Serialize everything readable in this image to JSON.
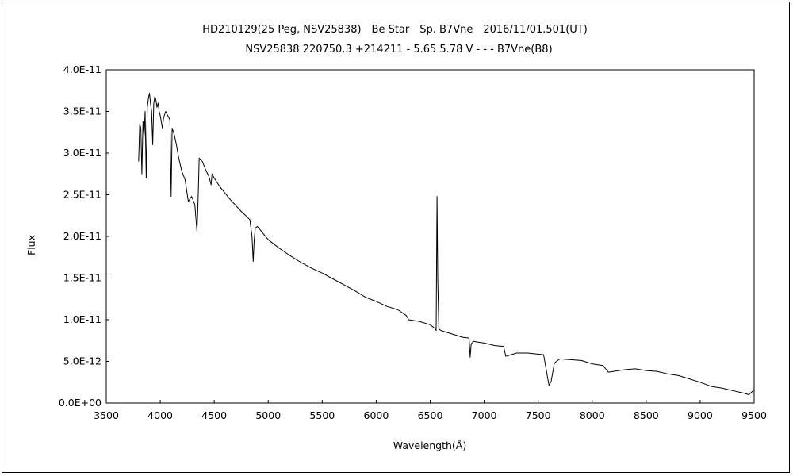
{
  "chart_data": {
    "type": "line",
    "title": "HD210129(25 Peg, NSV25838)　Be Star　Sp. B7Vne　2016/11/01.501(UT)",
    "subtitle": "NSV25838 220750.3 +214211 - 5.65 5.78 V - - - B7Vne(B8)",
    "xlabel": "Wavelength(Å)",
    "ylabel": "Flux",
    "xlim": [
      3500,
      9500
    ],
    "ylim": [
      0,
      4e-11
    ],
    "xticks": [
      3500,
      4000,
      4500,
      5000,
      5500,
      6000,
      6500,
      7000,
      7500,
      8000,
      8500,
      9000,
      9500
    ],
    "yticks": [
      "0.0E+00",
      "5.0E-12",
      "1.0E-11",
      "1.5E-11",
      "2.0E-11",
      "2.5E-11",
      "3.0E-11",
      "3.5E-11",
      "4.0E-11"
    ],
    "grid": false,
    "legend": "none",
    "series": [
      {
        "x": [
          3800,
          3810,
          3820,
          3830,
          3840,
          3850,
          3860,
          3870,
          3880,
          3890,
          3900,
          3910,
          3920,
          3930,
          3940,
          3950,
          3960,
          3970,
          3980,
          3990,
          4000,
          4010,
          4020,
          4030,
          4050,
          4070,
          4090,
          4101,
          4110,
          4130,
          4150,
          4170,
          4200,
          4230,
          4260,
          4290,
          4320,
          4340,
          4350,
          4361,
          4370,
          4390,
          4420,
          4450,
          4471,
          4480,
          4500,
          4550,
          4600,
          4650,
          4700,
          4750,
          4800,
          4830,
          4850,
          4861,
          4870,
          4880,
          4900,
          4950,
          5000,
          5100,
          5200,
          5300,
          5400,
          5500,
          5600,
          5700,
          5800,
          5900,
          6000,
          6100,
          6200,
          6280,
          6300,
          6400,
          6500,
          6540,
          6555,
          6563,
          6570,
          6580,
          6600,
          6700,
          6800,
          6860,
          6870,
          6880,
          6900,
          6950,
          7000,
          7100,
          7180,
          7200,
          7250,
          7300,
          7400,
          7550,
          7600,
          7620,
          7650,
          7700,
          7800,
          7900,
          8000,
          8100,
          8150,
          8200,
          8300,
          8400,
          8500,
          8600,
          8700,
          8800,
          8900,
          9000,
          9100,
          9200,
          9300,
          9400,
          9450,
          9500
        ],
        "y": [
          2.9e-11,
          3.35e-11,
          3.3e-11,
          2.75e-11,
          3.38e-11,
          3.2e-11,
          3.5e-11,
          2.7e-11,
          3.55e-11,
          3.65e-11,
          3.72e-11,
          3.6e-11,
          3.5e-11,
          3.1e-11,
          3.6e-11,
          3.68e-11,
          3.64e-11,
          3.55e-11,
          3.6e-11,
          3.5e-11,
          3.45e-11,
          3.38e-11,
          3.3e-11,
          3.42e-11,
          3.5e-11,
          3.45e-11,
          3.4e-11,
          2.48e-11,
          3.3e-11,
          3.22e-11,
          3.1e-11,
          2.95e-11,
          2.78e-11,
          2.68e-11,
          2.42e-11,
          2.48e-11,
          2.38e-11,
          2.06e-11,
          2.4e-11,
          2.94e-11,
          2.92e-11,
          2.9e-11,
          2.8e-11,
          2.72e-11,
          2.62e-11,
          2.75e-11,
          2.7e-11,
          2.6e-11,
          2.52e-11,
          2.44e-11,
          2.37e-11,
          2.3e-11,
          2.24e-11,
          2.2e-11,
          2e-11,
          1.7e-11,
          1.95e-11,
          2.1e-11,
          2.12e-11,
          2.04e-11,
          1.96e-11,
          1.86e-11,
          1.77e-11,
          1.69e-11,
          1.62e-11,
          1.56e-11,
          1.49e-11,
          1.42e-11,
          1.35e-11,
          1.27e-11,
          1.22e-11,
          1.16e-11,
          1.12e-11,
          1.05e-11,
          1e-11,
          9.8e-12,
          9.4e-12,
          9e-12,
          8.7e-12,
          2.48e-11,
          1.5e-11,
          8.9e-12,
          8.7e-12,
          8.3e-12,
          7.9e-12,
          7.8e-12,
          5.5e-12,
          7.1e-12,
          7.4e-12,
          7.3e-12,
          7.2e-12,
          6.9e-12,
          6.8e-12,
          5.6e-12,
          5.8e-12,
          6e-12,
          6e-12,
          5.8e-12,
          2.1e-12,
          2.6e-12,
          4.8e-12,
          5.3e-12,
          5.2e-12,
          5.1e-12,
          4.7e-12,
          4.5e-12,
          3.7e-12,
          3.8e-12,
          4e-12,
          4.1e-12,
          3.9e-12,
          3.8e-12,
          3.5e-12,
          3.3e-12,
          2.9e-12,
          2.5e-12,
          2e-12,
          1.8e-12,
          1.5e-12,
          1.2e-12,
          1e-12,
          1.6e-12
        ]
      }
    ]
  }
}
